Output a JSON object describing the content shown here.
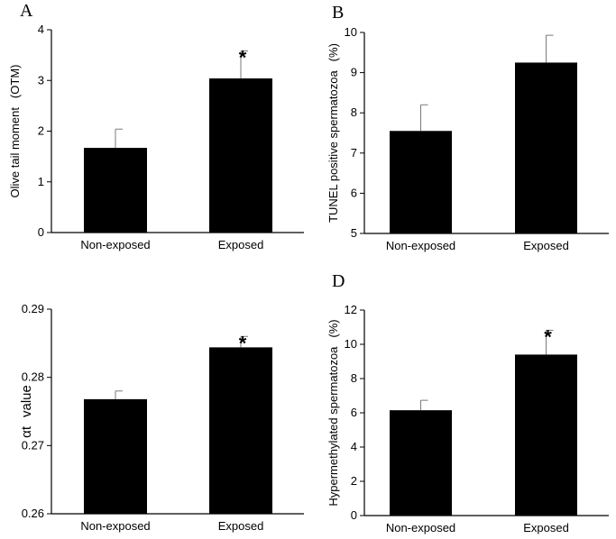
{
  "colors": {
    "bar": "#000000",
    "axis": "#000000",
    "error_bar": "#7a7a7a"
  },
  "chart_data": [
    {
      "panel": "A",
      "type": "bar",
      "categories": [
        "Non-exposed",
        "Exposed"
      ],
      "values": [
        1.67,
        3.04
      ],
      "errors": [
        0.37,
        0.54
      ],
      "significance": [
        "",
        "*"
      ],
      "ylabel_main": "Olive tail moment",
      "ylabel_unit": "(OTM)",
      "ylim": [
        0,
        4
      ],
      "yticks": [
        0,
        1,
        2,
        3,
        4
      ],
      "ytick_labels": [
        "0",
        "1",
        "2",
        "3",
        "4"
      ]
    },
    {
      "panel": "B",
      "type": "bar",
      "categories": [
        "Non-exposed",
        "Exposed"
      ],
      "values": [
        7.55,
        9.25
      ],
      "errors": [
        0.65,
        0.68
      ],
      "significance": [
        "",
        ""
      ],
      "ylabel_main": "TUNEL positive spermatozoa",
      "ylabel_unit": "(%)",
      "ylim": [
        5,
        10
      ],
      "yticks": [
        5,
        6,
        7,
        8,
        9,
        10
      ],
      "ytick_labels": [
        "5",
        "6",
        "7",
        "8",
        "9",
        "10"
      ]
    },
    {
      "panel": "",
      "type": "bar",
      "categories": [
        "Non-exposed",
        "Exposed"
      ],
      "values": [
        0.2768,
        0.2844
      ],
      "errors": [
        0.0012,
        0.0016
      ],
      "significance": [
        "",
        "*"
      ],
      "ylabel_main": "αt",
      "ylabel_unit": "value",
      "ylim": [
        0.26,
        0.29
      ],
      "yticks": [
        0.26,
        0.27,
        0.28,
        0.29
      ],
      "ytick_labels": [
        "0.26",
        "0.27",
        "0.28",
        "0.29"
      ]
    },
    {
      "panel": "D",
      "type": "bar",
      "categories": [
        "Non-exposed",
        "Exposed"
      ],
      "values": [
        6.15,
        9.4
      ],
      "errors": [
        0.58,
        1.42
      ],
      "significance": [
        "",
        "*"
      ],
      "ylabel_main": "Hypermethylated spermatozoa",
      "ylabel_unit": "(%)",
      "ylim": [
        0,
        12
      ],
      "yticks": [
        0,
        2,
        4,
        6,
        8,
        10,
        12
      ],
      "ytick_labels": [
        "0",
        "2",
        "4",
        "6",
        "8",
        "10",
        "12"
      ]
    }
  ]
}
